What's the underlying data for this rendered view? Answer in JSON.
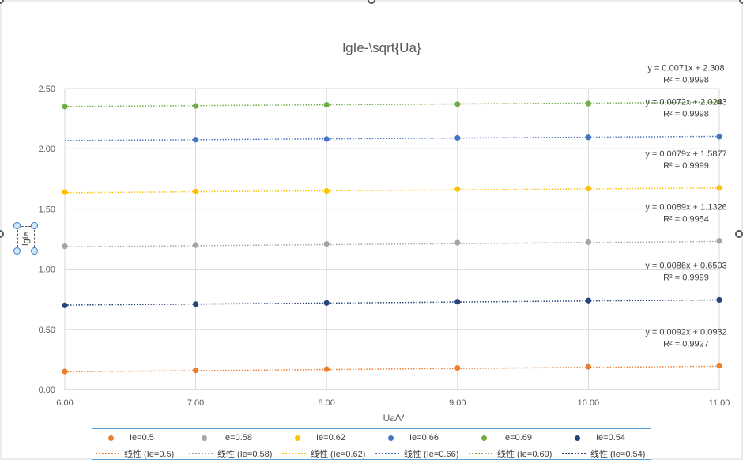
{
  "chart_data": {
    "type": "scatter",
    "title": "lgIe-\\sqrt{Ua}",
    "xlabel": "Ua/V",
    "ylabel": "lgIe",
    "xlim": [
      6,
      11
    ],
    "ylim": [
      0,
      2.5
    ],
    "x_ticks": [
      "6.00",
      "7.00",
      "8.00",
      "9.00",
      "10.00",
      "11.00"
    ],
    "y_ticks": [
      "0.00",
      "0.50",
      "1.00",
      "1.50",
      "2.00",
      "2.50"
    ],
    "grid": true,
    "legend_position": "bottom",
    "series": [
      {
        "name": "Ie=0.5",
        "color": "#ed7d31",
        "x": [
          6,
          7,
          8,
          9,
          10,
          11
        ],
        "y": [
          0.15,
          0.16,
          0.17,
          0.18,
          0.19,
          0.2
        ],
        "trendline": {
          "name": "线性 (Ie=0.5)",
          "slope": 0.0092,
          "intercept": 0.0932,
          "equation": "y = 0.0092x + 0.0932",
          "r2": "R² = 0.9927"
        }
      },
      {
        "name": "Ie=0.58",
        "color": "#a5a5a5",
        "x": [
          6,
          7,
          8,
          9,
          10,
          11
        ],
        "y": [
          1.19,
          1.2,
          1.21,
          1.22,
          1.225,
          1.235
        ],
        "trendline": {
          "name": "线性 (Ie=0.58)",
          "slope": 0.0089,
          "intercept": 1.1326,
          "equation": "y = 0.0089x + 1.1326",
          "r2": "R² = 0.9954"
        }
      },
      {
        "name": "Ie=0.62",
        "color": "#ffc000",
        "x": [
          6,
          7,
          8,
          9,
          10,
          11
        ],
        "y": [
          1.64,
          1.645,
          1.65,
          1.665,
          1.67,
          1.675
        ],
        "trendline": {
          "name": "线性 (Ie=0.62)",
          "slope": 0.0079,
          "intercept": 1.5877,
          "equation": "y = 0.0079x + 1.5877",
          "r2": "R² = 0.9999"
        }
      },
      {
        "name": "Ie=0.66",
        "color": "#4472c4",
        "x": [
          7,
          8,
          9,
          10,
          11
        ],
        "y": [
          2.075,
          2.08,
          2.09,
          2.095,
          2.1
        ],
        "trendline": {
          "name": "线性 (Ie=0.66)",
          "slope": 0.0072,
          "intercept": 2.0243,
          "equation": "y = 0.0072x + 2.0243",
          "r2": "R² = 0.9998"
        }
      },
      {
        "name": "Ie=0.69",
        "color": "#70ad47",
        "x": [
          6,
          7,
          8,
          9,
          10,
          11
        ],
        "y": [
          2.35,
          2.355,
          2.365,
          2.37,
          2.375,
          2.39
        ],
        "trendline": {
          "name": "线性 (Ie=0.69)",
          "slope": 0.0071,
          "intercept": 2.308,
          "equation": "y = 0.0071x + 2.308",
          "r2": "R² = 0.9998"
        }
      },
      {
        "name": "Ie=0.54",
        "color": "#264478",
        "x": [
          6,
          7,
          8,
          9,
          10,
          11
        ],
        "y": [
          0.7,
          0.71,
          0.72,
          0.73,
          0.74,
          0.745
        ],
        "trendline": {
          "name": "线性 (Ie=0.54)",
          "slope": 0.0086,
          "intercept": 0.6503,
          "equation": "y = 0.0086x + 0.6503",
          "r2": "R² = 0.9999"
        }
      }
    ]
  }
}
